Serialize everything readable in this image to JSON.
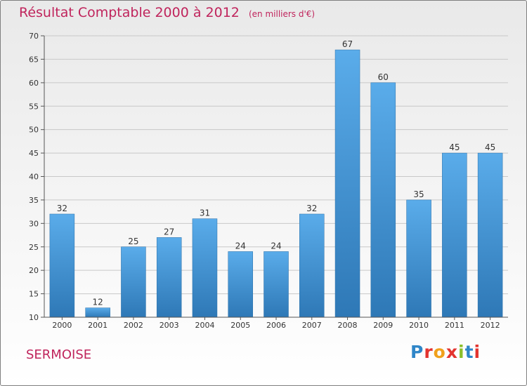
{
  "header": {
    "title": "Résultat Comptable 2000 à 2012",
    "subtitle": "(en milliers d'€)"
  },
  "footer": {
    "commune": "SERMOISE",
    "logo_text": "Proxiti",
    "logo_colors": [
      "#2f86c8",
      "#e3342f",
      "#f0a11c",
      "#e3342f",
      "#8bbf2a",
      "#2f86c8",
      "#e3342f"
    ]
  },
  "colors": {
    "bar_light": "#5aacea",
    "bar_dark": "#2e78b6",
    "axis": "#555555",
    "grid": "#c8c8c8",
    "title": "#c0245c"
  },
  "chart_data": {
    "type": "bar",
    "categories": [
      "2000",
      "2001",
      "2002",
      "2003",
      "2004",
      "2005",
      "2006",
      "2007",
      "2008",
      "2009",
      "2010",
      "2011",
      "2012"
    ],
    "values": [
      32,
      12,
      25,
      27,
      31,
      24,
      24,
      32,
      67,
      60,
      35,
      45,
      45
    ],
    "title": "Résultat Comptable 2000 à 2012",
    "subtitle": "(en milliers d'€)",
    "xlabel": "",
    "ylabel": "",
    "ylim": [
      10,
      70
    ],
    "yticks": [
      10,
      15,
      20,
      25,
      30,
      35,
      40,
      45,
      50,
      55,
      60,
      65,
      70
    ],
    "grid": true,
    "data_labels": true
  }
}
